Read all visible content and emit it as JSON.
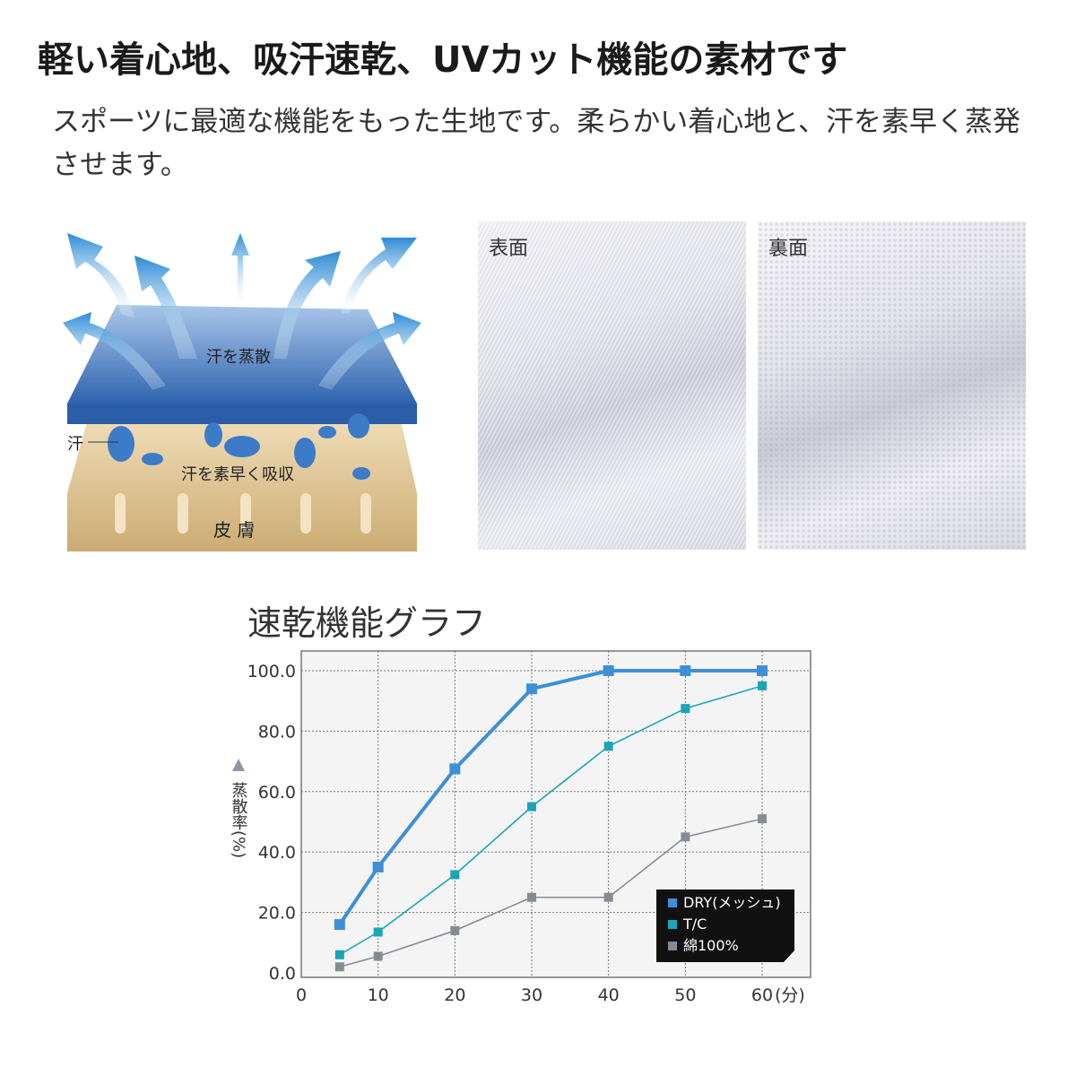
{
  "headline": "軽い着心地、吸汗速乾、UVカット機能の素材です",
  "description": "スポーツに最適な機能をもった生地です。柔らかい着心地と、汗を素早く蒸発させます。",
  "illustration": {
    "evaporate_label": "汗を蒸散",
    "sweat_label": "汗",
    "absorb_label": "汗を素早く吸収",
    "skin_label": "皮 膚"
  },
  "fabric_photos": {
    "front_label": "表面",
    "back_label": "裏面"
  },
  "chart_title": "速乾機能グラフ",
  "chart_data": {
    "type": "line",
    "title": "速乾機能グラフ",
    "xlabel": "(分)",
    "ylabel": "蒸散率(%)",
    "xlim": [
      0,
      60
    ],
    "ylim": [
      0,
      100
    ],
    "x_ticks": [
      "0",
      "10",
      "20",
      "30",
      "40",
      "50",
      "60"
    ],
    "y_ticks": [
      "0.0",
      "20.0",
      "40.0",
      "60.0",
      "80.0",
      "100.0"
    ],
    "grid": true,
    "legend_position": "bottom-right",
    "x": [
      5,
      10,
      20,
      30,
      40,
      50,
      60
    ],
    "series": [
      {
        "name": "DRY(メッシュ)",
        "color": "#3d8fd6",
        "values": [
          16,
          35,
          67.5,
          94,
          100,
          100,
          100
        ]
      },
      {
        "name": "T/C",
        "color": "#1aa5b8",
        "values": [
          6,
          13.5,
          32.5,
          55,
          75,
          87.5,
          95
        ]
      },
      {
        "name": "綿100%",
        "color": "#858b95",
        "values": [
          2,
          5.5,
          14,
          25,
          25,
          45,
          51
        ]
      }
    ]
  }
}
